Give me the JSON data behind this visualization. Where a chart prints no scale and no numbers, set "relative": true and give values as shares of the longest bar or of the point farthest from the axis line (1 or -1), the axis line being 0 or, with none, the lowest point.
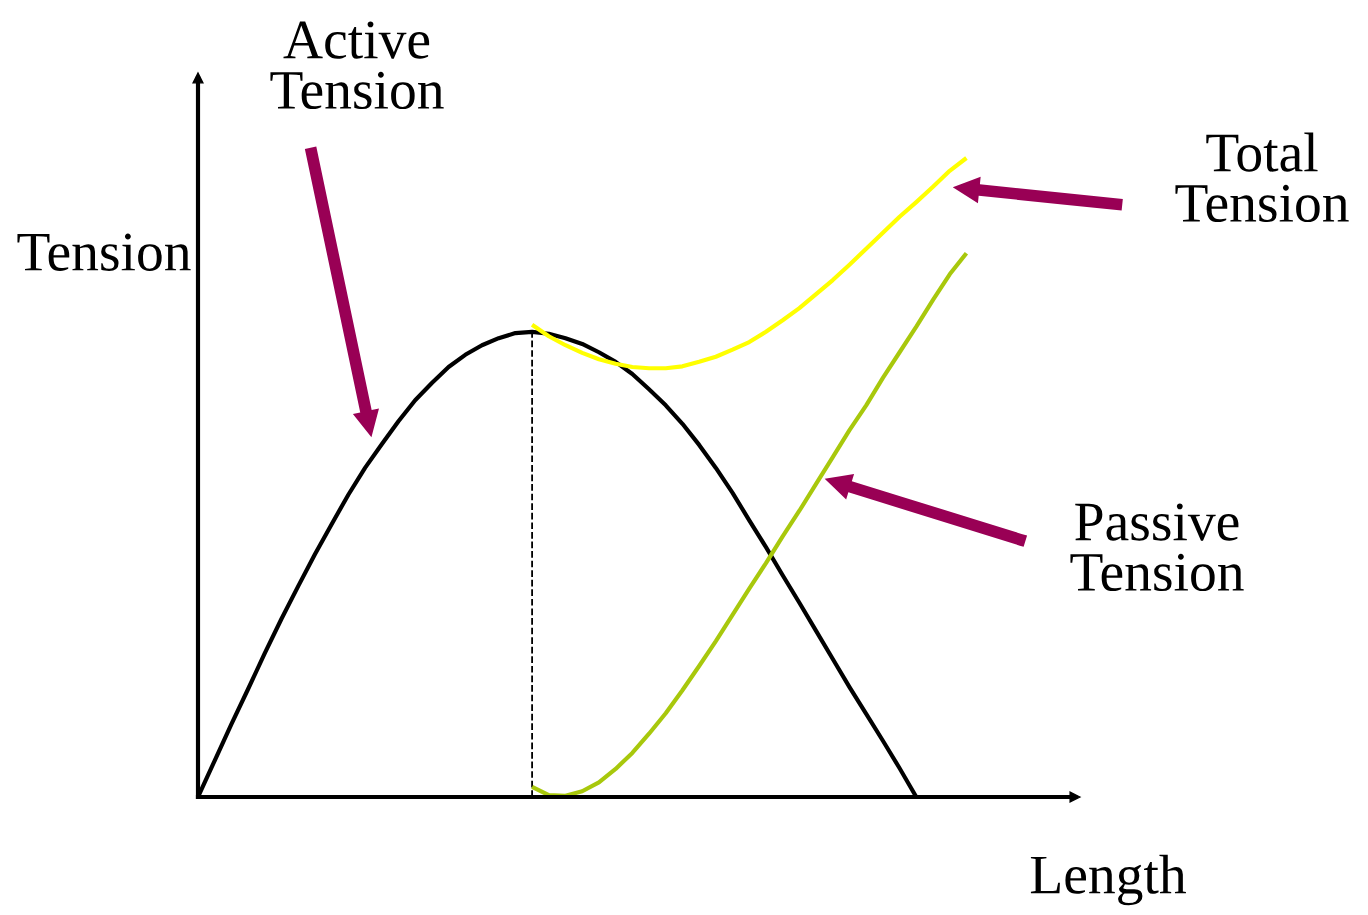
{
  "chart_data": {
    "type": "line",
    "relative": true,
    "xlabel": "Length",
    "ylabel": "Tension",
    "categories": [
      null,
      null,
      null,
      null,
      null,
      null,
      null,
      null,
      null,
      null,
      null,
      null,
      null,
      null,
      null,
      null,
      null,
      null,
      null,
      null,
      null,
      null,
      null,
      null,
      null,
      null,
      null,
      null,
      null,
      null,
      null,
      null,
      null,
      null,
      null,
      null,
      null,
      null,
      null,
      null,
      null,
      null,
      null,
      null,
      null,
      null,
      null,
      null,
      null,
      null,
      null,
      null,
      null
    ],
    "series": [
      {
        "color": "#000000",
        "values": [
          0,
          0.057,
          0.114,
          0.169,
          0.225,
          0.279,
          0.33,
          0.38,
          0.427,
          0.473,
          0.515,
          0.552,
          0.588,
          0.621,
          0.648,
          0.673,
          0.692,
          0.707,
          0.718,
          0.726,
          0.728,
          0.725,
          0.718,
          0.709,
          0.696,
          0.681,
          0.662,
          0.638,
          0.613,
          0.584,
          0.551,
          0.515,
          0.476,
          0.433,
          0.391,
          0.347,
          0.304,
          0.26,
          0.216,
          0.172,
          0.13,
          0.088,
          0.045,
          0,
          null,
          null,
          null,
          null,
          null,
          null,
          null,
          null,
          null
        ]
      },
      {
        "color": "#ffff00",
        "values": [
          null,
          null,
          null,
          null,
          null,
          null,
          null,
          null,
          null,
          null,
          null,
          null,
          null,
          null,
          null,
          null,
          null,
          null,
          null,
          null,
          0.739,
          0.721,
          0.707,
          0.695,
          0.685,
          0.678,
          0.673,
          0.671,
          0.671,
          0.674,
          0.681,
          0.689,
          0.7,
          0.712,
          0.728,
          0.746,
          0.765,
          0.787,
          0.809,
          0.833,
          0.858,
          0.883,
          0.908,
          0.931,
          0.955,
          0.98,
          1,
          null,
          null,
          null,
          null,
          null,
          null
        ]
      },
      {
        "color": "#a8c80c",
        "values": [
          null,
          null,
          null,
          null,
          null,
          null,
          null,
          null,
          null,
          null,
          null,
          null,
          null,
          null,
          null,
          null,
          null,
          null,
          null,
          null,
          0.016,
          0.003,
          0.002,
          0.009,
          0.023,
          0.044,
          0.069,
          0.099,
          0.131,
          0.167,
          0.205,
          0.244,
          0.285,
          0.326,
          0.366,
          0.408,
          0.448,
          0.49,
          0.532,
          0.574,
          0.613,
          0.656,
          0.696,
          0.736,
          0.778,
          0.818,
          0.851,
          null,
          null,
          null,
          null,
          null,
          null
        ]
      }
    ],
    "annotations": [
      "Active\nTension",
      "Total\nTension",
      "Passive\nTension"
    ],
    "legend": false,
    "marker": "none",
    "line_style": "solid"
  }
}
